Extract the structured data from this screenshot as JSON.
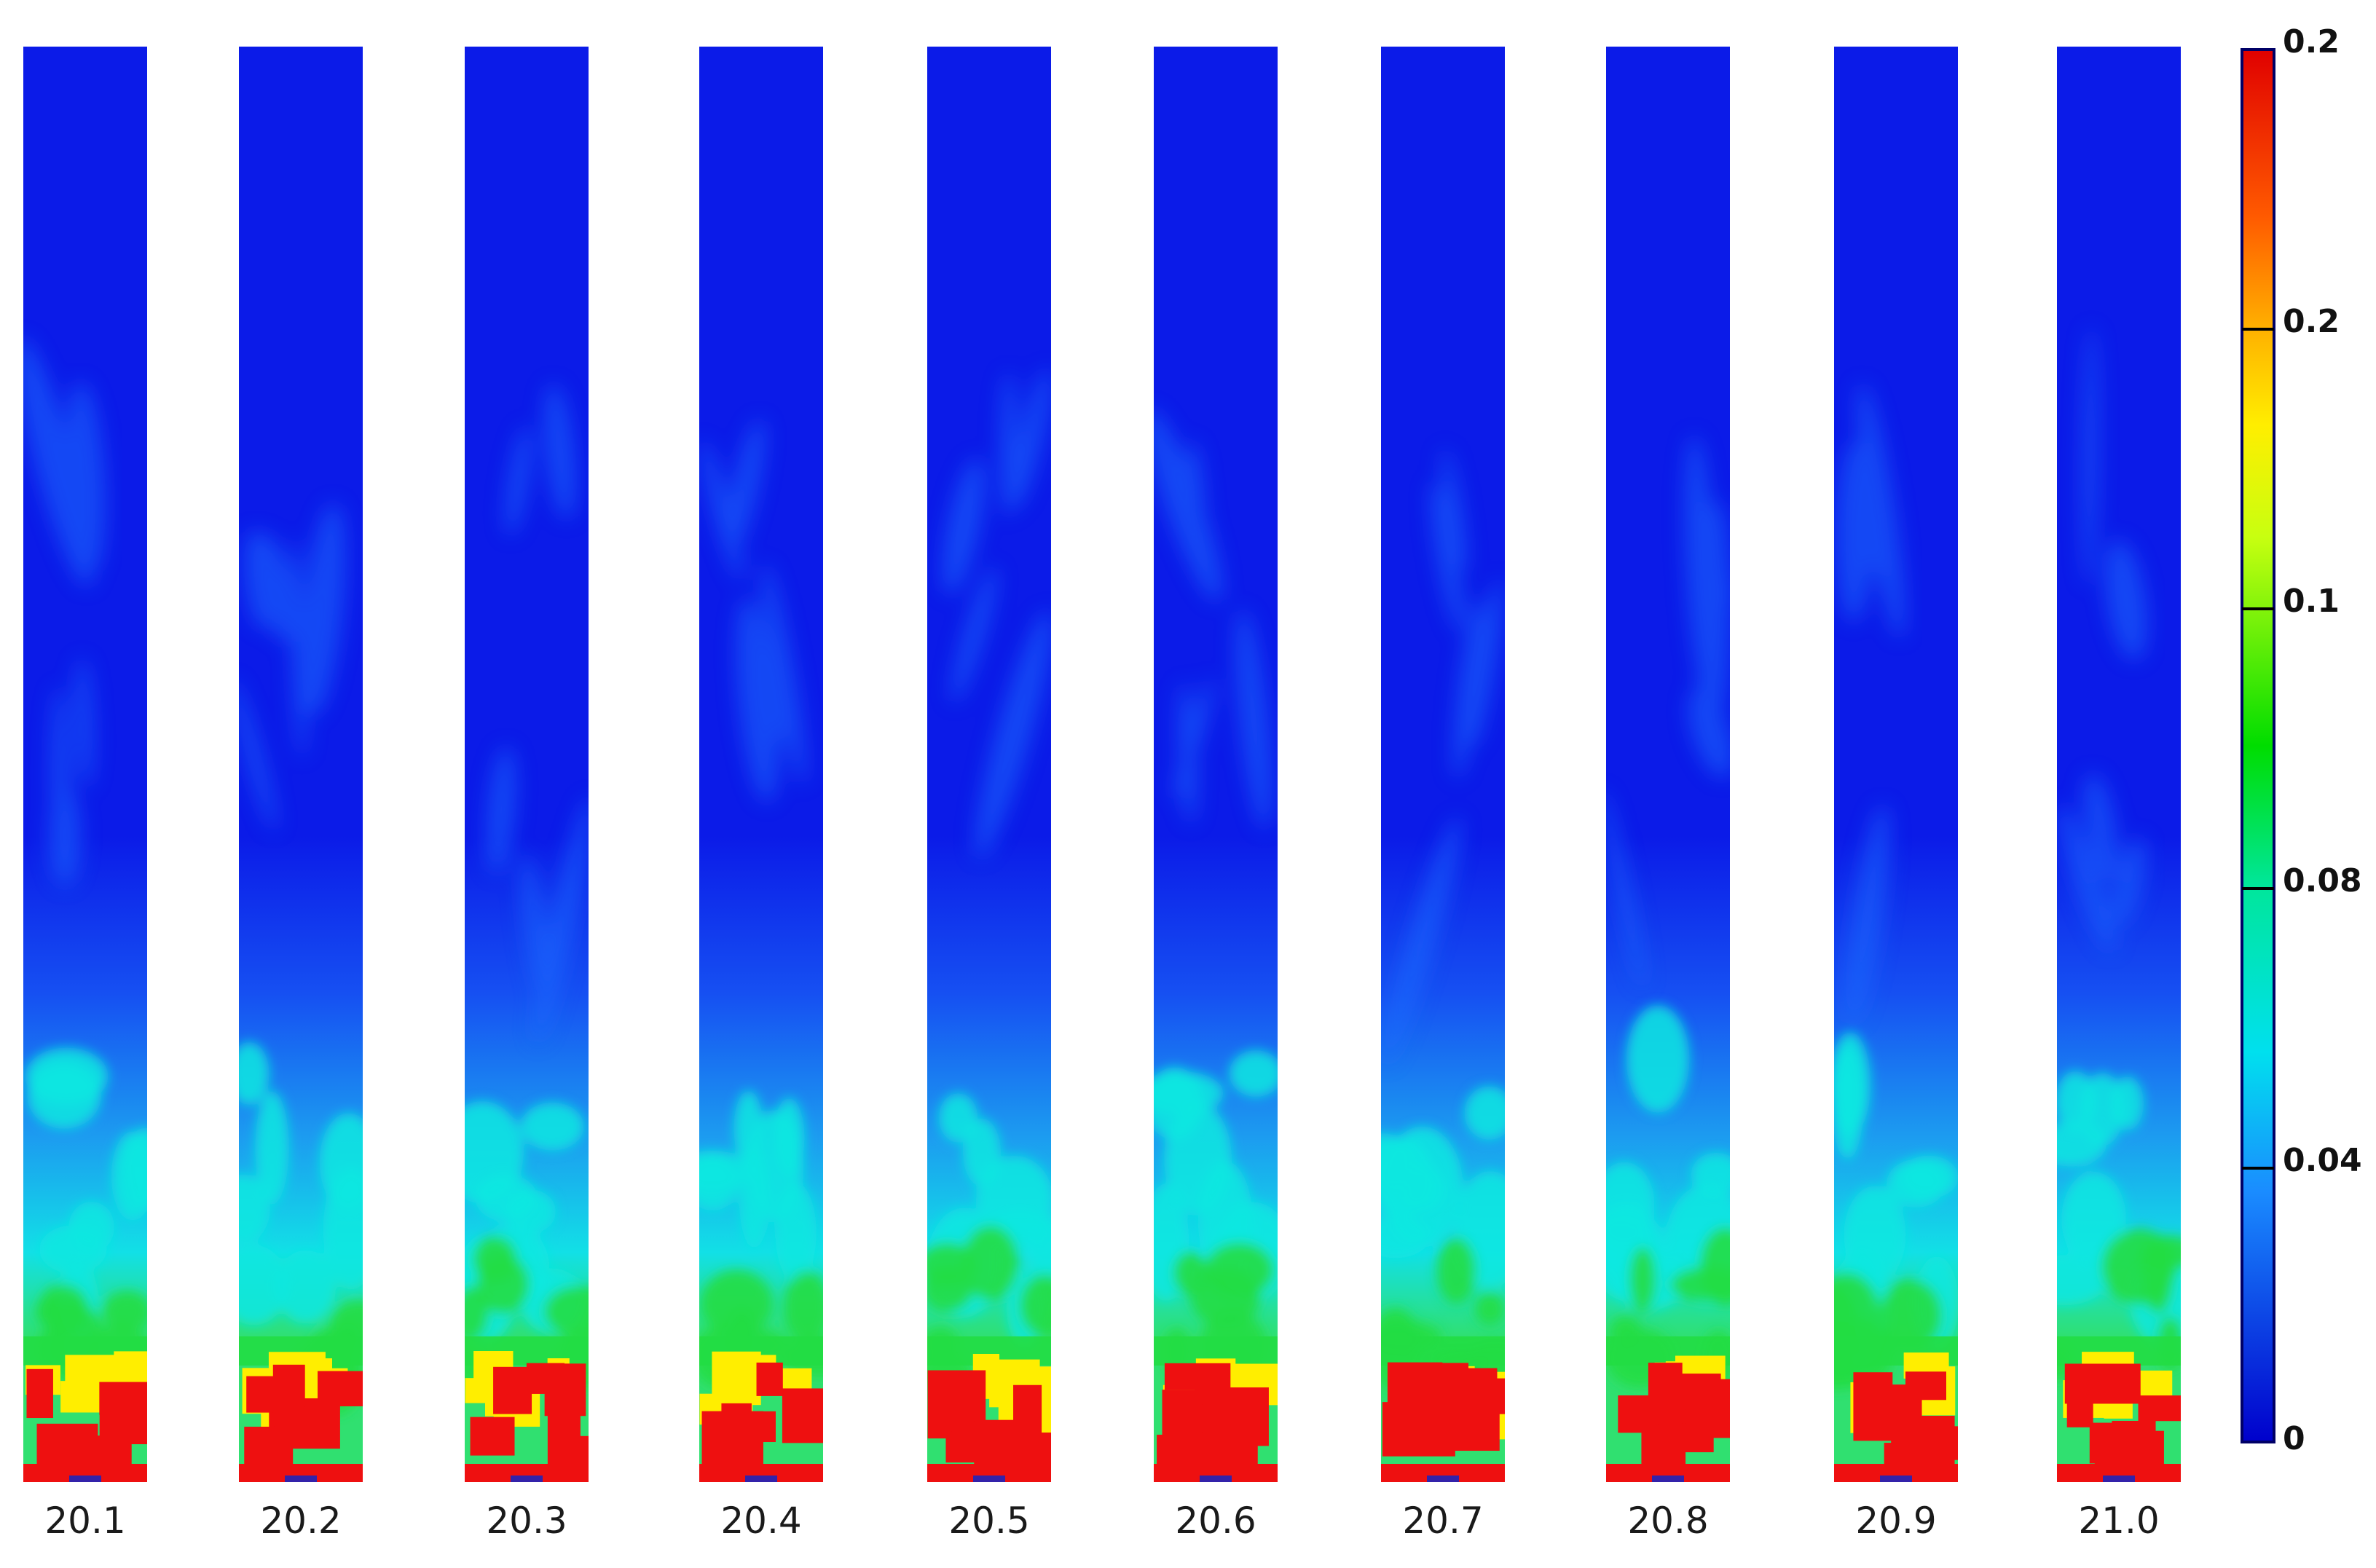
{
  "figure": {
    "frames": [
      {
        "label": "20.1"
      },
      {
        "label": "20.2"
      },
      {
        "label": "20.3"
      },
      {
        "label": "20.4"
      },
      {
        "label": "20.5"
      },
      {
        "label": "20.6"
      },
      {
        "label": "20.7"
      },
      {
        "label": "20.8"
      },
      {
        "label": "20.9"
      },
      {
        "label": "21.0"
      }
    ],
    "colorbar": {
      "tick_labels": [
        "0.2",
        "0.2",
        "0.1",
        "0.08",
        "0.04",
        "0"
      ],
      "colors": [
        "#e60000",
        "#ff6600",
        "#ffcc00",
        "#d8ff1a",
        "#00cc00",
        "#00e6a0",
        "#00e6e6",
        "#1a8cff",
        "#0000cc"
      ]
    },
    "field_colors": {
      "background": "#0b1be8",
      "low": "#1a6dff",
      "cyan": "#10e8e0",
      "green": "#22dd44",
      "yellow": "#ffee00",
      "red": "#ee1010"
    }
  }
}
